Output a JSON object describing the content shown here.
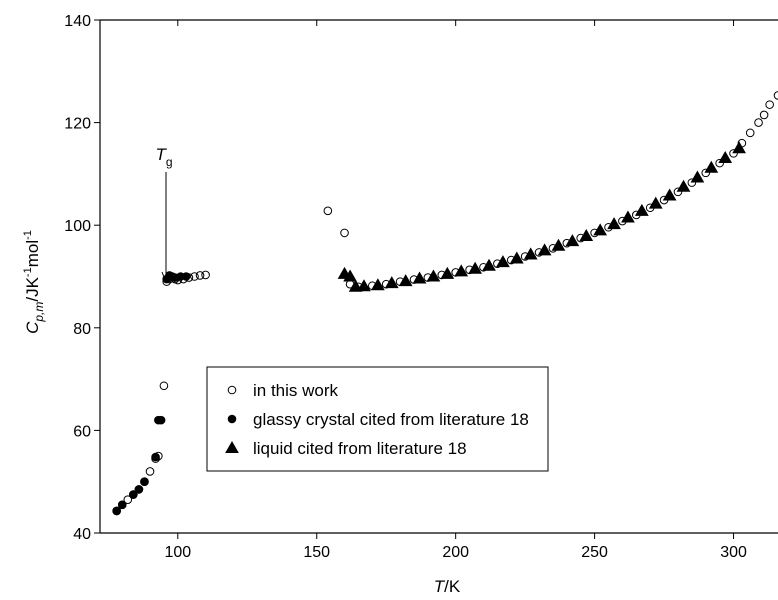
{
  "chart_data": {
    "type": "scatter",
    "xlabel_parts": [
      "T",
      "/K"
    ],
    "ylabel_parts": [
      "C",
      "p,m",
      "/JK",
      "-1",
      "mol",
      "-1"
    ],
    "annotation_parts": [
      "T",
      "g"
    ],
    "xlim": [
      72,
      316
    ],
    "ylim": [
      40,
      140
    ],
    "xticks": [
      100,
      150,
      200,
      250,
      300
    ],
    "yticks": [
      40,
      60,
      80,
      100,
      120,
      140
    ],
    "series": [
      {
        "name": "in this work",
        "color": "#000000",
        "marker": "circle",
        "fill": "none",
        "x": [
          78,
          80,
          82,
          84,
          86,
          88,
          90,
          92,
          93,
          95,
          96,
          97,
          99,
          100,
          102,
          104,
          106,
          108,
          110,
          154,
          160,
          162,
          165,
          170,
          175,
          180,
          185,
          190,
          195,
          200,
          205,
          210,
          215,
          220,
          225,
          230,
          235,
          240,
          245,
          250,
          255,
          260,
          265,
          270,
          275,
          280,
          285,
          290,
          295,
          300,
          303,
          306,
          309,
          311,
          313,
          316
        ],
        "values": [
          44.3,
          45.5,
          46.5,
          47.5,
          48.5,
          50,
          52,
          54.5,
          55,
          68.7,
          89,
          89.5,
          89.5,
          89.3,
          89.5,
          89.8,
          90,
          90.2,
          90.3,
          102.8,
          98.5,
          88.5,
          88.0,
          88.2,
          88.5,
          89.0,
          89.4,
          89.8,
          90.3,
          90.8,
          91.3,
          91.8,
          92.5,
          93.2,
          93.9,
          94.7,
          95.5,
          96.5,
          97.5,
          98.5,
          99.6,
          100.8,
          102.0,
          103.4,
          104.9,
          106.5,
          108.3,
          110.2,
          112.1,
          114.0,
          116,
          118,
          120,
          121.5,
          123.5,
          125.3
        ]
      },
      {
        "name": "glassy crystal cited from literature 18",
        "color": "#000000",
        "marker": "circle",
        "fill": "#000000",
        "x": [
          78,
          80,
          84,
          86,
          88,
          92,
          93,
          94,
          96,
          97,
          98,
          99,
          101,
          103
        ],
        "values": [
          44.3,
          45.5,
          47.5,
          48.5,
          50,
          54.8,
          62,
          62,
          89.5,
          90.2,
          90,
          89.8,
          90,
          90
        ]
      },
      {
        "name": "liquid cited from literature 18",
        "color": "#000000",
        "marker": "triangle",
        "fill": "#000000",
        "x": [
          160,
          162,
          164,
          167,
          172,
          177,
          182,
          187,
          192,
          197,
          202,
          207,
          212,
          217,
          222,
          227,
          232,
          237,
          242,
          247,
          252,
          257,
          262,
          267,
          272,
          277,
          282,
          287,
          292,
          297,
          302
        ],
        "values": [
          90.5,
          90,
          88,
          88.1,
          88.3,
          88.7,
          89.1,
          89.6,
          90.0,
          90.5,
          91.0,
          91.5,
          92.1,
          92.8,
          93.5,
          94.3,
          95.1,
          96.0,
          96.9,
          97.9,
          99.0,
          100.2,
          101.5,
          102.8,
          104.2,
          105.8,
          107.5,
          109.3,
          111.2,
          113.1,
          115.0
        ]
      }
    ]
  }
}
